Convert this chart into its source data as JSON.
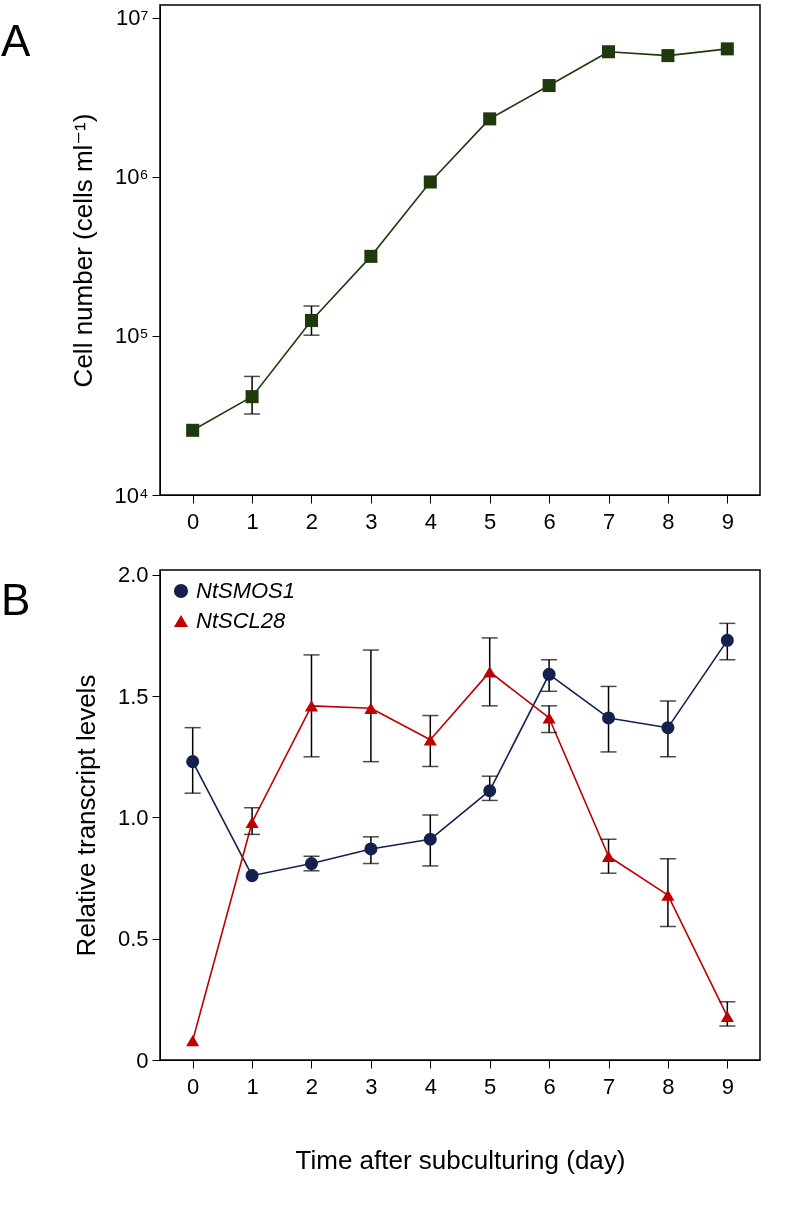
{
  "chart_data": [
    {
      "type": "line",
      "title": "A",
      "ylabel": "Cell number (cells ml⁻¹)",
      "x": [
        0,
        1,
        2,
        3,
        4,
        5,
        6,
        7,
        8,
        9
      ],
      "log": true,
      "marker": "square",
      "series": [
        {
          "color": "#1e3a0c",
          "values": [
            25500,
            41500,
            125000,
            316000,
            927000,
            2310000,
            3740000,
            6100000,
            5770000,
            6360000
          ],
          "errors": [
            null,
            [
              32300,
              55600
            ],
            [
              101000,
              154000
            ],
            null,
            null,
            null,
            null,
            null,
            null,
            null
          ]
        }
      ],
      "xlim": [
        -0.55,
        9.55
      ],
      "xticks": [
        0,
        1,
        2,
        3,
        4,
        5,
        6,
        7,
        8,
        9
      ],
      "ylim": [
        10000,
        12000000
      ],
      "yticks": [
        {
          "value": 10000,
          "label": "10⁴"
        },
        {
          "value": 100000,
          "label": "10⁵"
        },
        {
          "value": 1000000,
          "label": "10⁶"
        },
        {
          "value": 10000000,
          "label": "10⁷"
        }
      ]
    },
    {
      "type": "line",
      "title": "B",
      "xlabel": "Time after subculturing (day)",
      "ylabel": "Relative transcript levels",
      "x": [
        0,
        1,
        2,
        3,
        4,
        5,
        6,
        7,
        8,
        9
      ],
      "legend": "top left",
      "series": [
        {
          "name": "NtSMOS1",
          "color": "#14214f",
          "marker": "circle",
          "values": [
            1.23,
            0.76,
            0.81,
            0.87,
            0.91,
            1.11,
            1.59,
            1.41,
            1.37,
            1.73
          ],
          "errors": [
            [
              1.1,
              1.37
            ],
            null,
            [
              0.78,
              0.84
            ],
            [
              0.81,
              0.92
            ],
            [
              0.8,
              1.01
            ],
            [
              1.07,
              1.17
            ],
            [
              1.52,
              1.65
            ],
            [
              1.27,
              1.54
            ],
            [
              1.25,
              1.48
            ],
            [
              1.65,
              1.8
            ]
          ]
        },
        {
          "name": "NtSCL28",
          "color": "#c00000",
          "marker": "triangle",
          "values": [
            0.08,
            0.98,
            1.46,
            1.45,
            1.32,
            1.6,
            1.41,
            0.84,
            0.68,
            0.18
          ],
          "errors": [
            null,
            [
              0.93,
              1.04
            ],
            [
              1.25,
              1.67
            ],
            [
              1.23,
              1.69
            ],
            [
              1.21,
              1.42
            ],
            [
              1.46,
              1.74
            ],
            [
              1.35,
              1.46
            ],
            [
              0.77,
              0.91
            ],
            [
              0.55,
              0.83
            ],
            [
              0.14,
              0.24
            ]
          ]
        }
      ],
      "xlim": [
        -0.55,
        9.55
      ],
      "xticks": [
        0,
        1,
        2,
        3,
        4,
        5,
        6,
        7,
        8,
        9
      ],
      "ylim": [
        0,
        2.02
      ],
      "yticks": [
        {
          "value": 0,
          "label": "0"
        },
        {
          "value": 0.5,
          "label": "0.5"
        },
        {
          "value": 1,
          "label": "1.0"
        },
        {
          "value": 1.5,
          "label": "1.5"
        },
        {
          "value": 2,
          "label": "2.0"
        }
      ]
    }
  ]
}
